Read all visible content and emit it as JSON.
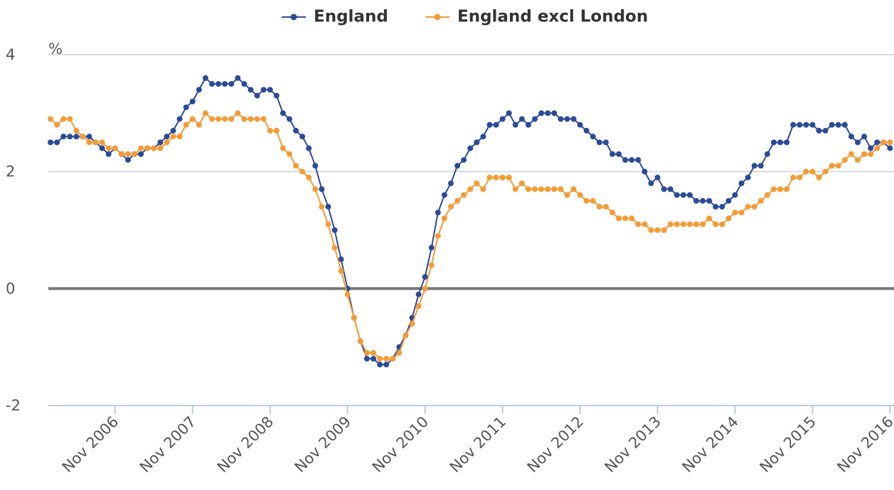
{
  "chart_data": {
    "type": "line",
    "y_label": "%",
    "categories": [
      null,
      null,
      null,
      null,
      null,
      null,
      null,
      null,
      null,
      null,
      "Nov 2006",
      null,
      null,
      null,
      null,
      null,
      null,
      null,
      null,
      null,
      null,
      null,
      "Nov 2007",
      null,
      null,
      null,
      null,
      null,
      null,
      null,
      null,
      null,
      null,
      null,
      "Nov 2008",
      null,
      null,
      null,
      null,
      null,
      null,
      null,
      null,
      null,
      null,
      null,
      "Nov 2009",
      null,
      null,
      null,
      null,
      null,
      null,
      null,
      null,
      null,
      null,
      null,
      "Nov 2010",
      null,
      null,
      null,
      null,
      null,
      null,
      null,
      null,
      null,
      null,
      null,
      "Nov 2011",
      null,
      null,
      null,
      null,
      null,
      null,
      null,
      null,
      null,
      null,
      null,
      "Nov 2012",
      null,
      null,
      null,
      null,
      null,
      null,
      null,
      null,
      null,
      null,
      null,
      "Nov 2013",
      null,
      null,
      null,
      null,
      null,
      null,
      null,
      null,
      null,
      null,
      null,
      "Nov 2014",
      null,
      null,
      null,
      null,
      null,
      null,
      null,
      null,
      null,
      null,
      null,
      "Nov 2015",
      null,
      null,
      null,
      null,
      null,
      null,
      null,
      null,
      null,
      null,
      null,
      "Nov 2016"
    ],
    "series": [
      {
        "name": "England",
        "color": "#2b4a98",
        "values": [
          2.5,
          2.5,
          2.6,
          2.6,
          2.6,
          2.6,
          2.6,
          2.5,
          2.4,
          2.3,
          2.4,
          2.3,
          2.2,
          2.3,
          2.3,
          2.4,
          2.4,
          2.5,
          2.6,
          2.7,
          2.9,
          3.1,
          3.2,
          3.4,
          3.6,
          3.5,
          3.5,
          3.5,
          3.5,
          3.6,
          3.5,
          3.4,
          3.3,
          3.4,
          3.4,
          3.3,
          3.0,
          2.9,
          2.7,
          2.6,
          2.4,
          2.1,
          1.7,
          1.4,
          1.0,
          0.5,
          0.0,
          -0.5,
          -0.9,
          -1.2,
          -1.2,
          -1.3,
          -1.3,
          -1.2,
          -1.0,
          -0.8,
          -0.5,
          -0.1,
          0.2,
          0.7,
          1.3,
          1.6,
          1.8,
          2.1,
          2.2,
          2.4,
          2.5,
          2.6,
          2.8,
          2.8,
          2.9,
          3.0,
          2.8,
          2.9,
          2.8,
          2.9,
          3.0,
          3.0,
          3.0,
          2.9,
          2.9,
          2.9,
          2.8,
          2.7,
          2.6,
          2.5,
          2.5,
          2.3,
          2.3,
          2.2,
          2.2,
          2.2,
          2.0,
          1.8,
          1.9,
          1.7,
          1.7,
          1.6,
          1.6,
          1.6,
          1.5,
          1.5,
          1.5,
          1.4,
          1.4,
          1.5,
          1.6,
          1.8,
          1.9,
          2.1,
          2.1,
          2.3,
          2.5,
          2.5,
          2.5,
          2.8,
          2.8,
          2.8,
          2.8,
          2.7,
          2.7,
          2.8,
          2.8,
          2.8,
          2.6,
          2.5,
          2.6,
          2.4,
          2.5,
          2.5,
          2.4
        ]
      },
      {
        "name": "England excl London",
        "color": "#f39b35",
        "values": [
          2.9,
          2.8,
          2.9,
          2.9,
          2.7,
          2.6,
          2.5,
          2.5,
          2.5,
          2.4,
          2.4,
          2.3,
          2.3,
          2.3,
          2.4,
          2.4,
          2.4,
          2.4,
          2.5,
          2.6,
          2.6,
          2.8,
          2.9,
          2.8,
          3.0,
          2.9,
          2.9,
          2.9,
          2.9,
          3.0,
          2.9,
          2.9,
          2.9,
          2.9,
          2.7,
          2.7,
          2.4,
          2.3,
          2.1,
          2.0,
          1.9,
          1.7,
          1.4,
          1.1,
          0.7,
          0.3,
          -0.1,
          -0.5,
          -0.9,
          -1.1,
          -1.1,
          -1.2,
          -1.2,
          -1.2,
          -1.1,
          -0.8,
          -0.6,
          -0.3,
          0.0,
          0.4,
          0.9,
          1.2,
          1.4,
          1.5,
          1.6,
          1.7,
          1.8,
          1.7,
          1.9,
          1.9,
          1.9,
          1.9,
          1.7,
          1.8,
          1.7,
          1.7,
          1.7,
          1.7,
          1.7,
          1.7,
          1.6,
          1.7,
          1.6,
          1.5,
          1.5,
          1.4,
          1.4,
          1.3,
          1.2,
          1.2,
          1.2,
          1.1,
          1.1,
          1.0,
          1.0,
          1.0,
          1.1,
          1.1,
          1.1,
          1.1,
          1.1,
          1.1,
          1.2,
          1.1,
          1.1,
          1.2,
          1.3,
          1.3,
          1.4,
          1.4,
          1.5,
          1.6,
          1.7,
          1.7,
          1.7,
          1.9,
          1.9,
          2.0,
          2.0,
          1.9,
          2.0,
          2.1,
          2.1,
          2.2,
          2.3,
          2.2,
          2.3,
          2.3,
          2.4,
          2.5,
          2.5
        ]
      }
    ],
    "ylim": [
      -2,
      4
    ],
    "yticks": [
      -2,
      0,
      2,
      4
    ],
    "grid": true,
    "legend": "top"
  }
}
